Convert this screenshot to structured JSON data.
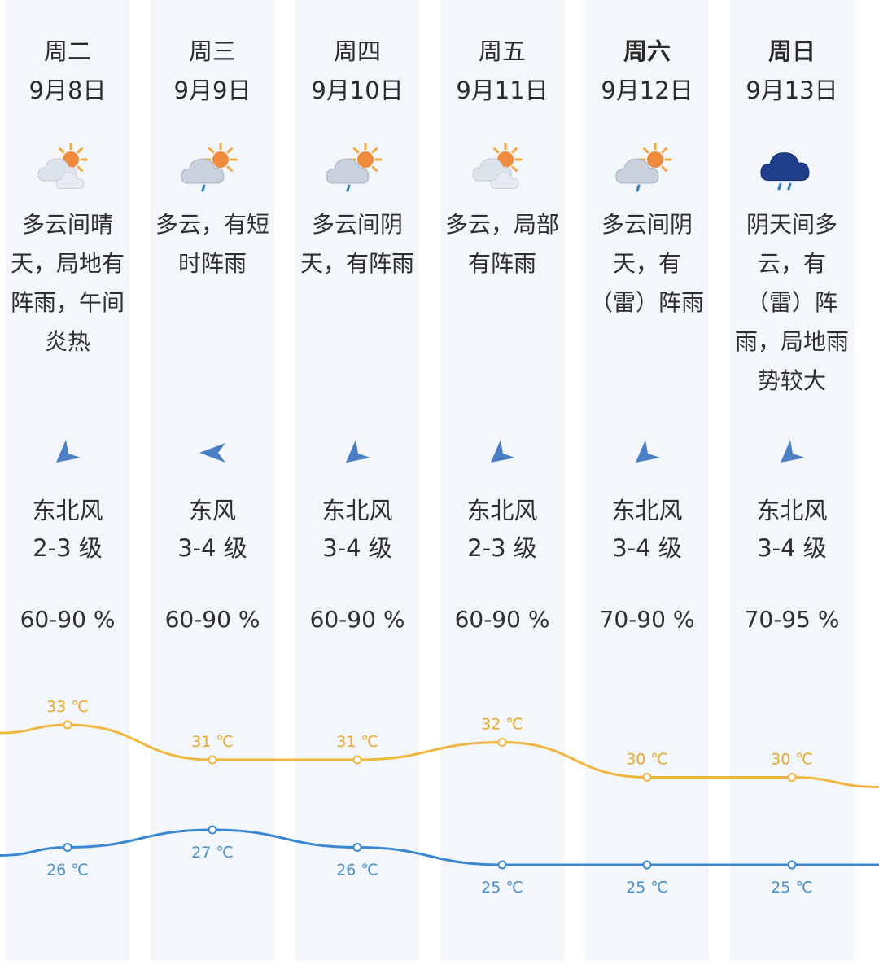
{
  "colors": {
    "high_line": "#f0b640",
    "low_line": "#3a88d4",
    "high_text": "#e9a92e",
    "low_text": "#4a90c8",
    "arrow": "#4b7fc4",
    "column_bg": "#f3f6fb"
  },
  "days": [
    {
      "weekday": "周二",
      "date": "9月8日",
      "icon": "partly-cloudy-icon",
      "desc_lines": [
        "多云间晴",
        "天，局地有",
        "阵雨，午间",
        "炎热"
      ],
      "wind_dir": "东北风",
      "wind_level": "2-3 级",
      "humidity": "60-90 %",
      "high_label": "33 ℃",
      "low_label": "26 ℃"
    },
    {
      "weekday": "周三",
      "date": "9月9日",
      "icon": "cloud-sun-rain-icon",
      "desc_lines": [
        "多云，有短",
        "时阵雨"
      ],
      "wind_dir": "东风",
      "wind_level": "3-4 级",
      "humidity": "60-90 %",
      "high_label": "31 ℃",
      "low_label": "27 ℃"
    },
    {
      "weekday": "周四",
      "date": "9月10日",
      "icon": "cloud-sun-rain-icon",
      "desc_lines": [
        "多云间阴",
        "天，有阵雨"
      ],
      "wind_dir": "东北风",
      "wind_level": "3-4 级",
      "humidity": "60-90 %",
      "high_label": "31 ℃",
      "low_label": "26 ℃"
    },
    {
      "weekday": "周五",
      "date": "9月11日",
      "icon": "partly-cloudy-icon",
      "desc_lines": [
        "多云，局部",
        "有阵雨"
      ],
      "wind_dir": "东北风",
      "wind_level": "2-3 级",
      "humidity": "60-90 %",
      "high_label": "32 ℃",
      "low_label": "25 ℃"
    },
    {
      "weekday": "周六",
      "date": "9月12日",
      "icon": "cloud-sun-rain-icon",
      "desc_lines": [
        "多云间阴",
        "天，有",
        "（雷）阵雨"
      ],
      "wind_dir": "东北风",
      "wind_level": "3-4 级",
      "humidity": "70-90 %",
      "high_label": "30 ℃",
      "low_label": "25 ℃"
    },
    {
      "weekday": "周日",
      "date": "9月13日",
      "icon": "dark-cloud-rain-icon",
      "desc_lines": [
        "阴天间多",
        "云，有",
        "（雷）阵",
        "雨，局地雨",
        "势较大"
      ],
      "wind_dir": "东北风",
      "wind_level": "3-4 级",
      "humidity": "70-95 %",
      "high_label": "30 ℃",
      "low_label": "25 ℃"
    }
  ],
  "chart_data": {
    "type": "line",
    "categories": [
      "9月8日",
      "9月9日",
      "9月10日",
      "9月11日",
      "9月12日",
      "9月13日"
    ],
    "series": [
      {
        "values": [
          33,
          31,
          31,
          32,
          30,
          30
        ]
      },
      {
        "values": [
          26,
          27,
          26,
          25,
          25,
          25
        ]
      }
    ],
    "unit": "℃"
  }
}
